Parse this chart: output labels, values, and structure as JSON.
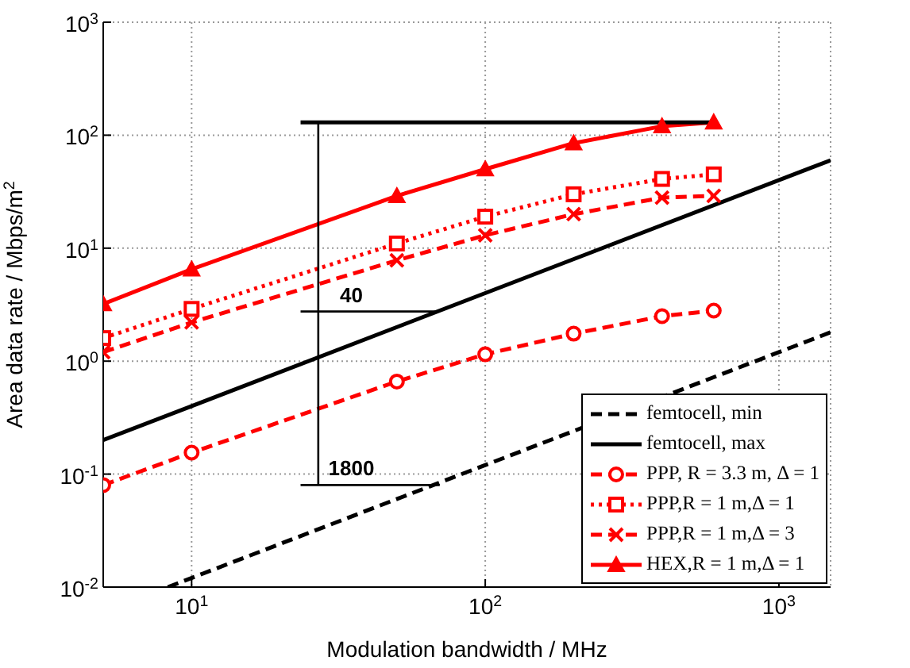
{
  "chart_data": {
    "type": "line",
    "xlabel": "Modulation bandwidth / MHz",
    "ylabel": "Area data rate / Mbps/m$^{2}$",
    "log": "xy",
    "grid": true,
    "legend": "bottom right",
    "xlim": [
      5,
      1500
    ],
    "ylim": [
      0.01,
      1000
    ],
    "xticks": [
      {
        "value": 10,
        "label": "10$^{1}$"
      },
      {
        "value": 100,
        "label": "10$^{2}$"
      },
      {
        "value": 1000,
        "label": "10$^{3}$"
      }
    ],
    "yticks": [
      {
        "value": 0.01,
        "label": "10$^{-2}$"
      },
      {
        "value": 0.1,
        "label": "10$^{-1}$"
      },
      {
        "value": 1,
        "label": "10$^{0}$"
      },
      {
        "value": 10,
        "label": "10$^{1}$"
      },
      {
        "value": 100,
        "label": "10$^{2}$"
      },
      {
        "value": 1000,
        "label": "10$^{3}$"
      }
    ],
    "annotations": [
      {
        "text": "40",
        "x": 35,
        "y": 2.75
      },
      {
        "text": "1800",
        "x": 35,
        "y": 0.08
      }
    ],
    "series": [
      {
        "name": "femtocell, min",
        "color": "#000000",
        "x": [
          8.3,
          1500
        ],
        "values": [
          0.01,
          1.8
        ],
        "marker": "none",
        "line_style": "dashed"
      },
      {
        "name": "femtocell, max",
        "color": "#000000",
        "x": [
          5,
          1500
        ],
        "values": [
          0.2,
          60
        ],
        "marker": "none",
        "line_style": "solid"
      },
      {
        "name": "PPP, R = 3.3 m, Δ = 1",
        "color": "#ff0000",
        "x": [
          5,
          10,
          50,
          100,
          200,
          400,
          600
        ],
        "values": [
          0.08,
          0.155,
          0.66,
          1.15,
          1.75,
          2.5,
          2.8
        ],
        "marker": "circle",
        "line_style": "dashed"
      },
      {
        "name": "PPP,R = 1 m,Δ = 1",
        "color": "#ff0000",
        "x": [
          5,
          10,
          50,
          100,
          200,
          400,
          600
        ],
        "values": [
          1.6,
          2.9,
          11,
          19,
          30,
          41,
          45
        ],
        "marker": "square",
        "line_style": "dotted"
      },
      {
        "name": "PPP,R = 1 m,Δ = 3",
        "color": "#ff0000",
        "x": [
          5,
          10,
          50,
          100,
          200,
          400,
          600
        ],
        "values": [
          1.2,
          2.2,
          7.8,
          13,
          20,
          28,
          29
        ],
        "marker": "cross",
        "line_style": "dashed"
      },
      {
        "name": "HEX,R = 1 m,Δ = 1",
        "color": "#ff0000",
        "x": [
          5,
          10,
          50,
          100,
          200,
          400,
          600
        ],
        "values": [
          3.2,
          6.5,
          29,
          50,
          85,
          120,
          130
        ],
        "marker": "triangle",
        "line_style": "solid"
      },
      {
        "color": "#000000",
        "x": [
          23.5,
          600
        ],
        "values": [
          130,
          130
        ],
        "marker": "none",
        "line_style": "solid"
      },
      {
        "color": "#000000",
        "x": [
          27,
          27
        ],
        "values": [
          130,
          0.08
        ],
        "marker": "none",
        "line_style": "solid"
      },
      {
        "color": "#000000",
        "x": [
          23.5,
          70
        ],
        "values": [
          2.75,
          2.75
        ],
        "marker": "none",
        "line_style": "solid"
      },
      {
        "color": "#000000",
        "x": [
          23.5,
          70
        ],
        "values": [
          0.08,
          0.08
        ],
        "marker": "none",
        "line_style": "solid"
      }
    ]
  }
}
